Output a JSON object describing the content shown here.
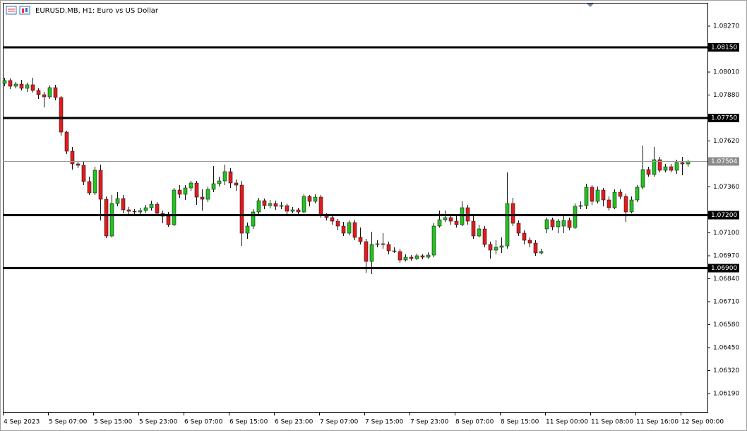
{
  "chart_data": {
    "type": "candlestick",
    "title": "EURUSD.MB, H1:  Euro vs US Dollar",
    "up_color": "#22c31f",
    "down_color": "#e31a1c",
    "categories": [
      "4 Sep 2023",
      null,
      null,
      null,
      null,
      null,
      null,
      null,
      "5 Sep 07:00",
      null,
      null,
      null,
      null,
      null,
      null,
      null,
      "5 Sep 15:00",
      null,
      null,
      null,
      null,
      null,
      null,
      null,
      "5 Sep 23:00",
      null,
      null,
      null,
      null,
      null,
      null,
      null,
      "6 Sep 07:00",
      null,
      null,
      null,
      null,
      null,
      null,
      null,
      "6 Sep 15:00",
      null,
      null,
      null,
      null,
      null,
      null,
      null,
      "6 Sep 23:00",
      null,
      null,
      null,
      null,
      null,
      null,
      null,
      "7 Sep 07:00",
      null,
      null,
      null,
      null,
      null,
      null,
      null,
      "7 Sep 15:00",
      null,
      null,
      null,
      null,
      null,
      null,
      null,
      "7 Sep 23:00",
      null,
      null,
      null,
      null,
      null,
      null,
      null,
      "8 Sep 07:00",
      null,
      null,
      null,
      null,
      null,
      null,
      null,
      "8 Sep 15:00",
      null,
      null,
      null,
      null,
      null,
      null,
      null,
      "11 Sep 00:00",
      null,
      null,
      null,
      null,
      null,
      null,
      null,
      "11 Sep 08:00",
      null,
      null,
      null,
      null,
      null,
      null,
      null,
      "11 Sep 16:00",
      null,
      null,
      null,
      null,
      null,
      null,
      null,
      "12 Sep 00:00",
      null
    ],
    "open": [
      1.07946,
      1.07962,
      1.0793,
      1.07942,
      1.07918,
      1.07938,
      1.07906,
      1.07882,
      1.0787,
      1.07922,
      1.07866,
      1.0767,
      1.07562,
      1.0749,
      1.07482,
      1.0739,
      1.07326,
      1.07454,
      1.0729,
      1.07082,
      1.07266,
      1.07294,
      1.0723,
      1.07222,
      1.07218,
      1.07226,
      1.07242,
      1.07262,
      1.0721,
      1.07194,
      1.07146,
      1.07342,
      1.07318,
      1.07354,
      1.07382,
      1.07302,
      1.0729,
      1.07346,
      1.07378,
      1.07394,
      1.07446,
      1.07382,
      1.0737,
      1.07098,
      1.07138,
      1.07218,
      1.07282,
      1.07254,
      1.07266,
      1.0725,
      1.07254,
      1.07222,
      1.0723,
      1.07218,
      1.07306,
      1.07278,
      1.07302,
      1.07198,
      1.07186,
      1.07166,
      1.07138,
      1.07098,
      1.07158,
      1.07074,
      1.0705,
      1.06938,
      1.07034,
      1.07038,
      1.07034,
      1.06998,
      1.06994,
      1.06946,
      1.06962,
      1.06954,
      1.0697,
      1.06962,
      1.06974,
      1.07138,
      1.07174,
      1.07186,
      1.07166,
      1.07146,
      1.07242,
      1.07166,
      1.07082,
      1.07122,
      1.07034,
      1.07002,
      1.07018,
      1.07026,
      1.07266,
      1.07154,
      1.07098,
      1.07058,
      1.07042,
      1.06986,
      1.07122,
      1.07174,
      1.07134,
      1.07138,
      1.0717,
      1.0713,
      1.0725,
      1.07254,
      1.07358,
      1.07278,
      1.07342,
      1.07286,
      1.07242,
      1.0733,
      1.07306,
      1.07218,
      1.07286,
      1.07358,
      1.07458,
      1.0743,
      1.07514,
      1.07454,
      1.07474,
      1.07454,
      1.07498,
      1.0749
    ],
    "high": [
      1.07978,
      1.07974,
      1.07954,
      1.07966,
      1.0795,
      1.07978,
      1.07918,
      1.07898,
      1.07934,
      1.07938,
      1.07874,
      1.07678,
      1.07586,
      1.07506,
      1.07506,
      1.07418,
      1.07474,
      1.07486,
      1.07306,
      1.07314,
      1.0733,
      1.07314,
      1.07246,
      1.07234,
      1.07242,
      1.07258,
      1.07282,
      1.07274,
      1.07226,
      1.07218,
      1.07354,
      1.0737,
      1.0737,
      1.07394,
      1.07394,
      1.07346,
      1.07362,
      1.07478,
      1.07418,
      1.07486,
      1.07466,
      1.07402,
      1.07394,
      1.07158,
      1.07234,
      1.07298,
      1.07294,
      1.07286,
      1.07282,
      1.07274,
      1.07266,
      1.07246,
      1.07242,
      1.07318,
      1.07314,
      1.07318,
      1.07314,
      1.0721,
      1.07206,
      1.07178,
      1.07162,
      1.0717,
      1.07174,
      1.0713,
      1.07066,
      1.07106,
      1.07058,
      1.07098,
      1.0705,
      1.07018,
      1.0701,
      1.06978,
      1.06974,
      1.06982,
      1.06978,
      1.0699,
      1.07154,
      1.07226,
      1.07226,
      1.07202,
      1.07194,
      1.07278,
      1.07258,
      1.07194,
      1.07146,
      1.07138,
      1.0705,
      1.07058,
      1.07074,
      1.07442,
      1.07298,
      1.0717,
      1.07114,
      1.07074,
      1.07058,
      1.0701,
      1.07186,
      1.07186,
      1.07178,
      1.07198,
      1.07186,
      1.07266,
      1.07278,
      1.07378,
      1.0737,
      1.07362,
      1.07354,
      1.07306,
      1.07346,
      1.07346,
      1.07322,
      1.07306,
      1.0737,
      1.07594,
      1.07474,
      1.07586,
      1.0753,
      1.0749,
      1.0749,
      1.07514,
      1.0753,
      1.07514
    ],
    "low": [
      1.0793,
      1.07914,
      1.07918,
      1.07906,
      1.07898,
      1.07894,
      1.07858,
      1.0781,
      1.07858,
      1.0785,
      1.0765,
      1.07546,
      1.07458,
      1.07466,
      1.0737,
      1.07314,
      1.07314,
      1.0717,
      1.0707,
      1.07074,
      1.0725,
      1.0721,
      1.07206,
      1.07202,
      1.07206,
      1.07214,
      1.07226,
      1.07198,
      1.07154,
      1.07134,
      1.07138,
      1.07298,
      1.07286,
      1.07338,
      1.07258,
      1.07226,
      1.07274,
      1.0733,
      1.07362,
      1.0737,
      1.07354,
      1.07338,
      1.07026,
      1.07066,
      1.07122,
      1.07198,
      1.07234,
      1.07238,
      1.0723,
      1.07234,
      1.07206,
      1.0721,
      1.07198,
      1.0721,
      1.0725,
      1.07266,
      1.07186,
      1.0717,
      1.07146,
      1.07114,
      1.07082,
      1.07086,
      1.07058,
      1.07034,
      1.06874,
      1.06866,
      1.07018,
      1.0701,
      1.06978,
      1.06986,
      1.0693,
      1.06938,
      1.06942,
      1.06946,
      1.0695,
      1.06954,
      1.06962,
      1.0713,
      1.07162,
      1.07146,
      1.0713,
      1.07138,
      1.07146,
      1.07066,
      1.07074,
      1.07018,
      1.06954,
      1.06978,
      1.06986,
      1.0701,
      1.07138,
      1.07082,
      1.07034,
      1.07018,
      1.0697,
      1.06978,
      1.07098,
      1.07114,
      1.07098,
      1.07098,
      1.07114,
      1.07122,
      1.07234,
      1.07234,
      1.07258,
      1.07266,
      1.0725,
      1.07226,
      1.07234,
      1.0729,
      1.07162,
      1.0721,
      1.07274,
      1.07346,
      1.07418,
      1.07418,
      1.07442,
      1.07442,
      1.07442,
      1.07434,
      1.07426,
      1.07474
    ],
    "close": [
      1.07962,
      1.0793,
      1.07942,
      1.07918,
      1.07938,
      1.07906,
      1.07882,
      1.0787,
      1.07922,
      1.07866,
      1.0767,
      1.07562,
      1.0749,
      1.07482,
      1.0739,
      1.07326,
      1.07454,
      1.0729,
      1.07082,
      1.07266,
      1.07294,
      1.0723,
      1.07222,
      1.07218,
      1.07226,
      1.07242,
      1.07262,
      1.0721,
      1.07194,
      1.07146,
      1.07342,
      1.07318,
      1.07354,
      1.07382,
      1.07302,
      1.0729,
      1.07346,
      1.07378,
      1.07394,
      1.07446,
      1.07382,
      1.0737,
      1.07098,
      1.07138,
      1.07218,
      1.07282,
      1.07254,
      1.07266,
      1.0725,
      1.07254,
      1.07222,
      1.0723,
      1.07218,
      1.07306,
      1.07278,
      1.07302,
      1.07198,
      1.07186,
      1.07166,
      1.07138,
      1.07098,
      1.07158,
      1.07074,
      1.0705,
      1.06938,
      1.07034,
      1.07038,
      1.07034,
      1.06998,
      1.06994,
      1.06946,
      1.06962,
      1.06954,
      1.0697,
      1.06962,
      1.06974,
      1.07138,
      1.07174,
      1.07186,
      1.07166,
      1.07146,
      1.07242,
      1.07166,
      1.07082,
      1.07122,
      1.07034,
      1.07002,
      1.07018,
      1.07026,
      1.07266,
      1.07154,
      1.07098,
      1.07058,
      1.07042,
      1.06986,
      1.06994,
      1.07174,
      1.07134,
      1.07166,
      1.0717,
      1.0713,
      1.0725,
      1.07254,
      1.07358,
      1.07278,
      1.07342,
      1.07286,
      1.07242,
      1.0733,
      1.07306,
      1.07218,
      1.07286,
      1.07358,
      1.07458,
      1.0743,
      1.07514,
      1.07454,
      1.07474,
      1.07454,
      1.07498,
      1.0749,
      1.07504
    ],
    "ylim": [
      1.06086,
      1.08402
    ],
    "yticks": [
      {
        "value": 1.0827,
        "label": "1.08270"
      },
      {
        "value": 1.0801,
        "label": "1.08010"
      },
      {
        "value": 1.0788,
        "label": "1.07880"
      },
      {
        "value": 1.0762,
        "label": "1.07620"
      },
      {
        "value": 1.0736,
        "label": "1.07360"
      },
      {
        "value": 1.071,
        "label": "1.07100"
      },
      {
        "value": 1.0697,
        "label": "1.06970"
      },
      {
        "value": 1.0684,
        "label": "1.06840"
      },
      {
        "value": 1.0671,
        "label": "1.06710"
      },
      {
        "value": 1.0658,
        "label": "1.06580"
      },
      {
        "value": 1.0645,
        "label": "1.06450"
      },
      {
        "value": 1.0632,
        "label": "1.06320"
      },
      {
        "value": 1.0619,
        "label": "1.06190"
      }
    ],
    "levels": [
      {
        "value": 1.0815,
        "label": "1.08150"
      },
      {
        "value": 1.0775,
        "label": "1.07750"
      },
      {
        "value": 1.072,
        "label": "1.07200"
      },
      {
        "value": 1.069,
        "label": "1.06900"
      }
    ],
    "last_price": 1.07504
  }
}
